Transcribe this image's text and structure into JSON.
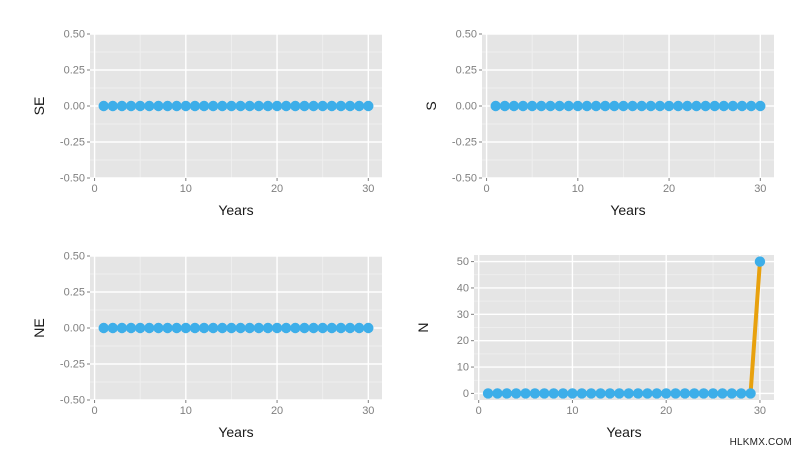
{
  "watermark": "HLKMX.COM",
  "colors": {
    "panel_bg": "#e5e5e5",
    "grid_major": "#ffffff",
    "grid_minor": "#f0f0f0",
    "point": "#3daee9",
    "line_series": "#e8a10e",
    "tick_text": "#7f7f7f",
    "label_text": "#1a1a1a"
  },
  "chart_data": [
    {
      "type": "line",
      "xlabel": "Years",
      "ylabel": "SE",
      "xlim": [
        -0.5,
        31.5
      ],
      "ylim": [
        -0.5,
        0.5
      ],
      "xticks": [
        0,
        10,
        20,
        30
      ],
      "xtick_labels": [
        "0",
        "10",
        "20",
        "30"
      ],
      "yticks": [
        -0.5,
        -0.25,
        0,
        0.25,
        0.5
      ],
      "ytick_labels": [
        "-0.50",
        "-0.25",
        "0.00",
        "0.25",
        "0.50"
      ],
      "grid": true,
      "x": [
        1,
        2,
        3,
        4,
        5,
        6,
        7,
        8,
        9,
        10,
        11,
        12,
        13,
        14,
        15,
        16,
        17,
        18,
        19,
        20,
        21,
        22,
        23,
        24,
        25,
        26,
        27,
        28,
        29,
        30
      ],
      "y": [
        0,
        0,
        0,
        0,
        0,
        0,
        0,
        0,
        0,
        0,
        0,
        0,
        0,
        0,
        0,
        0,
        0,
        0,
        0,
        0,
        0,
        0,
        0,
        0,
        0,
        0,
        0,
        0,
        0,
        0
      ]
    },
    {
      "type": "line",
      "xlabel": "Years",
      "ylabel": "S",
      "xlim": [
        -0.5,
        31.5
      ],
      "ylim": [
        -0.5,
        0.5
      ],
      "xticks": [
        0,
        10,
        20,
        30
      ],
      "xtick_labels": [
        "0",
        "10",
        "20",
        "30"
      ],
      "yticks": [
        -0.5,
        -0.25,
        0,
        0.25,
        0.5
      ],
      "ytick_labels": [
        "-0.50",
        "-0.25",
        "0.00",
        "0.25",
        "0.50"
      ],
      "grid": true,
      "x": [
        1,
        2,
        3,
        4,
        5,
        6,
        7,
        8,
        9,
        10,
        11,
        12,
        13,
        14,
        15,
        16,
        17,
        18,
        19,
        20,
        21,
        22,
        23,
        24,
        25,
        26,
        27,
        28,
        29,
        30
      ],
      "y": [
        0,
        0,
        0,
        0,
        0,
        0,
        0,
        0,
        0,
        0,
        0,
        0,
        0,
        0,
        0,
        0,
        0,
        0,
        0,
        0,
        0,
        0,
        0,
        0,
        0,
        0,
        0,
        0,
        0,
        0
      ]
    },
    {
      "type": "line",
      "xlabel": "Years",
      "ylabel": "NE",
      "xlim": [
        -0.5,
        31.5
      ],
      "ylim": [
        -0.5,
        0.5
      ],
      "xticks": [
        0,
        10,
        20,
        30
      ],
      "xtick_labels": [
        "0",
        "10",
        "20",
        "30"
      ],
      "yticks": [
        -0.5,
        -0.25,
        0,
        0.25,
        0.5
      ],
      "ytick_labels": [
        "-0.50",
        "-0.25",
        "0.00",
        "0.25",
        "0.50"
      ],
      "grid": true,
      "x": [
        1,
        2,
        3,
        4,
        5,
        6,
        7,
        8,
        9,
        10,
        11,
        12,
        13,
        14,
        15,
        16,
        17,
        18,
        19,
        20,
        21,
        22,
        23,
        24,
        25,
        26,
        27,
        28,
        29,
        30
      ],
      "y": [
        0,
        0,
        0,
        0,
        0,
        0,
        0,
        0,
        0,
        0,
        0,
        0,
        0,
        0,
        0,
        0,
        0,
        0,
        0,
        0,
        0,
        0,
        0,
        0,
        0,
        0,
        0,
        0,
        0,
        0
      ]
    },
    {
      "type": "line",
      "xlabel": "Years",
      "ylabel": "N",
      "xlim": [
        -0.5,
        31.5
      ],
      "ylim": [
        -2.5,
        52.5
      ],
      "xticks": [
        0,
        10,
        20,
        30
      ],
      "xtick_labels": [
        "0",
        "10",
        "20",
        "30"
      ],
      "yticks": [
        0,
        10,
        20,
        30,
        40,
        50
      ],
      "ytick_labels": [
        "0",
        "10",
        "20",
        "30",
        "40",
        "50"
      ],
      "grid": true,
      "x": [
        1,
        2,
        3,
        4,
        5,
        6,
        7,
        8,
        9,
        10,
        11,
        12,
        13,
        14,
        15,
        16,
        17,
        18,
        19,
        20,
        21,
        22,
        23,
        24,
        25,
        26,
        27,
        28,
        29,
        30
      ],
      "y": [
        0,
        0,
        0,
        0,
        0,
        0,
        0,
        0,
        0,
        0,
        0,
        0,
        0,
        0,
        0,
        0,
        0,
        0,
        0,
        0,
        0,
        0,
        0,
        0,
        0,
        0,
        0,
        0,
        0,
        50
      ],
      "line_segment": {
        "x": [
          29,
          30
        ],
        "y": [
          0,
          50
        ]
      }
    }
  ]
}
